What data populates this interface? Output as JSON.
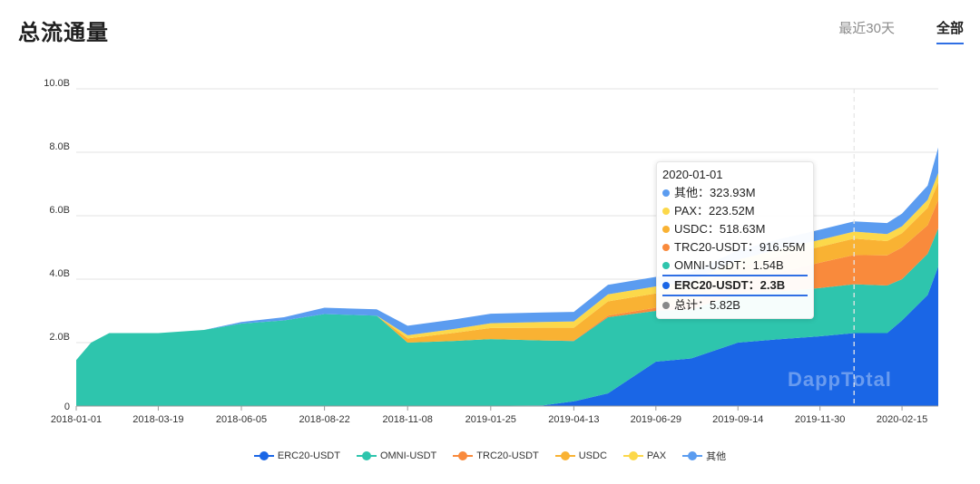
{
  "header": {
    "title": "总流通量"
  },
  "tabs": [
    {
      "label": "最近30天",
      "active": false
    },
    {
      "label": "全部",
      "active": true
    }
  ],
  "watermark": "DappTotal",
  "tooltip": {
    "date": "2020-01-01",
    "rows": [
      {
        "label": "其他：323.93M",
        "color": "#5b9cf0"
      },
      {
        "label": "PAX：223.52M",
        "color": "#fcd84a"
      },
      {
        "label": "USDC：518.63M",
        "color": "#f9b233"
      },
      {
        "label": "TRC20-USDT：916.55M",
        "color": "#f98a3c"
      },
      {
        "label": "OMNI-USDT：1.54B",
        "color": "#2ec5ad"
      },
      {
        "label": "ERC20-USDT：2.3B",
        "color": "#1a66e6",
        "highlight": true
      },
      {
        "label": "总计：5.82B",
        "color": "#888888"
      }
    ]
  },
  "chart_data": {
    "type": "area",
    "stacked": true,
    "x_tick_labels": [
      "2018-01-01",
      "2018-03-19",
      "2018-06-05",
      "2018-08-22",
      "2018-11-08",
      "2019-01-25",
      "2019-04-13",
      "2019-06-29",
      "2019-09-14",
      "2019-11-30",
      "2020-02-15"
    ],
    "y_tick_labels": [
      "0",
      "2.0B",
      "4.0B",
      "6.0B",
      "8.0B",
      "10.0B"
    ],
    "ylim": [
      0,
      10
    ],
    "y_unit": "B",
    "grid": true,
    "legend_position": "bottom",
    "x": [
      "2018-01-01",
      "2018-01-15",
      "2018-02-01",
      "2018-03-19",
      "2018-05-01",
      "2018-06-05",
      "2018-07-15",
      "2018-08-22",
      "2018-10-10",
      "2018-11-08",
      "2018-12-20",
      "2019-01-25",
      "2019-03-15",
      "2019-04-13",
      "2019-05-15",
      "2019-06-29",
      "2019-08-01",
      "2019-09-14",
      "2019-10-20",
      "2019-11-30",
      "2020-01-01",
      "2020-02-01",
      "2020-02-15",
      "2020-03-10",
      "2020-03-20"
    ],
    "series": [
      {
        "name": "ERC20-USDT",
        "color": "#1a66e6",
        "values": [
          0,
          0,
          0,
          0,
          0,
          0,
          0,
          0,
          0,
          0,
          0,
          0.01,
          0.02,
          0.15,
          0.4,
          1.4,
          1.5,
          2.0,
          2.1,
          2.2,
          2.3,
          2.3,
          2.7,
          3.5,
          4.4
        ]
      },
      {
        "name": "OMNI-USDT",
        "color": "#2ec5ad",
        "values": [
          1.45,
          2.0,
          2.3,
          2.3,
          2.4,
          2.6,
          2.7,
          2.9,
          2.85,
          2.0,
          2.05,
          2.1,
          2.05,
          1.9,
          2.4,
          1.6,
          1.55,
          1.54,
          1.5,
          1.52,
          1.54,
          1.5,
          1.3,
          1.3,
          1.2
        ]
      },
      {
        "name": "TRC20-USDT",
        "color": "#f98a3c",
        "values": [
          0,
          0,
          0,
          0,
          0,
          0,
          0,
          0,
          0,
          0,
          0,
          0,
          0,
          0.02,
          0.05,
          0.1,
          0.2,
          0.4,
          0.6,
          0.8,
          0.92,
          0.95,
          1.0,
          0.9,
          0.9
        ]
      },
      {
        "name": "USDC",
        "color": "#f9b233",
        "values": [
          0,
          0,
          0,
          0,
          0,
          0,
          0,
          0,
          0,
          0.13,
          0.25,
          0.35,
          0.4,
          0.4,
          0.45,
          0.45,
          0.45,
          0.45,
          0.5,
          0.5,
          0.52,
          0.45,
          0.45,
          0.55,
          0.55
        ]
      },
      {
        "name": "PAX",
        "color": "#fcd84a",
        "values": [
          0,
          0,
          0,
          0,
          0,
          0,
          0,
          0,
          0,
          0.1,
          0.12,
          0.15,
          0.18,
          0.2,
          0.22,
          0.22,
          0.22,
          0.22,
          0.22,
          0.22,
          0.22,
          0.22,
          0.22,
          0.25,
          0.3
        ]
      },
      {
        "name": "其他",
        "color": "#5b9cf0",
        "values": [
          0,
          0,
          0,
          0,
          0,
          0.05,
          0.1,
          0.2,
          0.2,
          0.3,
          0.3,
          0.3,
          0.3,
          0.3,
          0.3,
          0.3,
          0.3,
          0.3,
          0.32,
          0.32,
          0.32,
          0.35,
          0.4,
          0.45,
          0.8
        ]
      }
    ]
  }
}
